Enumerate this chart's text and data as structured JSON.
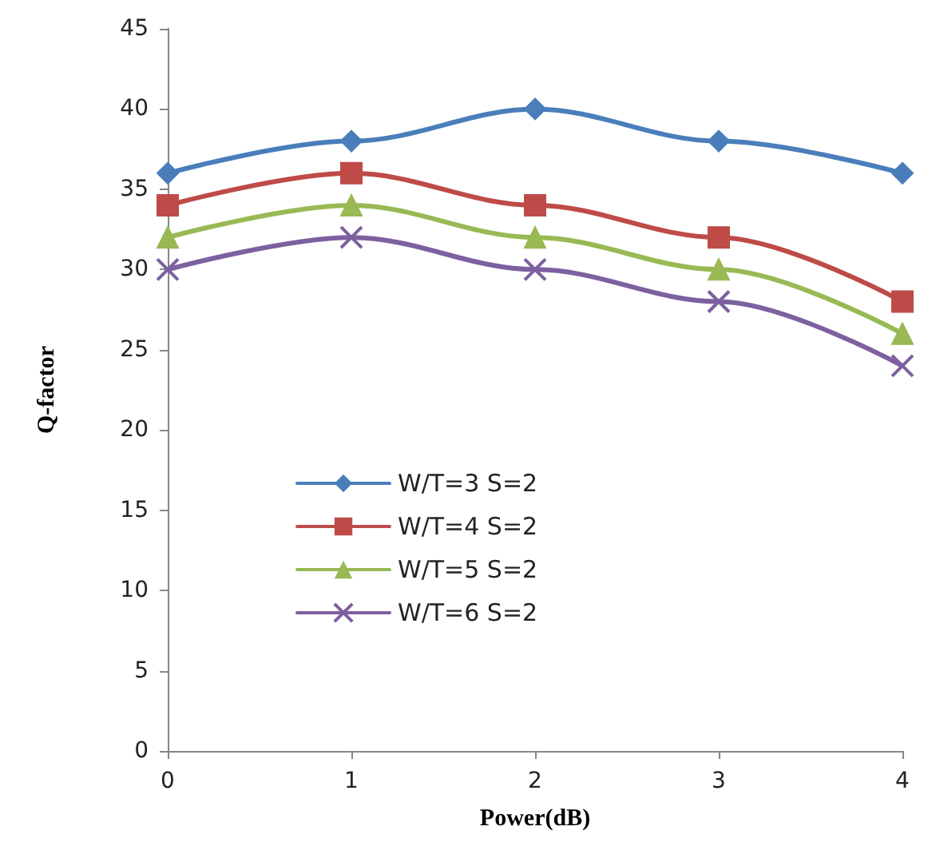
{
  "chart_data": {
    "type": "line",
    "xlabel": "Power(dB)",
    "ylabel": "Q-factor",
    "x": [
      0,
      1,
      2,
      3,
      4
    ],
    "series": [
      {
        "name": "W/T=3 S=2",
        "color": "#4a7ebb",
        "marker": "diamond",
        "values": [
          36,
          38,
          40,
          38,
          36
        ]
      },
      {
        "name": "W/T=4 S=2",
        "color": "#be4b48",
        "marker": "square",
        "values": [
          34,
          36,
          34,
          32,
          28
        ]
      },
      {
        "name": "W/T=5 S=2",
        "color": "#98b954",
        "marker": "triangle",
        "values": [
          32,
          34,
          32,
          30,
          26
        ]
      },
      {
        "name": "W/T=6 S=2",
        "color": "#7d60a0",
        "marker": "cross",
        "values": [
          30,
          32,
          30,
          28,
          24
        ]
      }
    ],
    "xlim": [
      0,
      4
    ],
    "xticks": [
      0,
      1,
      2,
      3,
      4
    ],
    "ylim": [
      0,
      45
    ],
    "yticks": [
      0,
      5,
      10,
      15,
      20,
      25,
      30,
      35,
      40,
      45
    ],
    "grid": false,
    "legend": "bottom left",
    "line_style": "solid"
  }
}
